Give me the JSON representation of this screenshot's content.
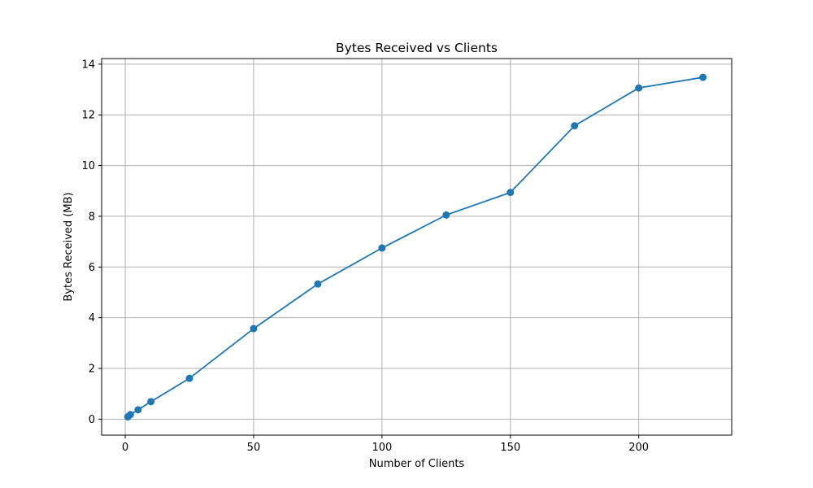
{
  "chart_data": {
    "type": "line",
    "title": "Bytes Received vs Clients",
    "xlabel": "Number of Clients",
    "ylabel": "Bytes Received (MB)",
    "xlim": [
      -9.2,
      236.2
    ],
    "ylim": [
      -0.63,
      14.22
    ],
    "xticks": [
      0,
      50,
      100,
      150,
      200
    ],
    "yticks": [
      0,
      2,
      4,
      6,
      8,
      10,
      12,
      14
    ],
    "grid": true,
    "series": [
      {
        "x": [
          1,
          2,
          5,
          10,
          25,
          50,
          75,
          100,
          125,
          150,
          175,
          200,
          225
        ],
        "y": [
          0.09,
          0.18,
          0.37,
          0.69,
          1.61,
          3.57,
          5.33,
          6.75,
          8.05,
          8.94,
          11.57,
          13.06,
          13.48
        ],
        "color": "#1f77b4",
        "marker": "circle"
      }
    ]
  }
}
